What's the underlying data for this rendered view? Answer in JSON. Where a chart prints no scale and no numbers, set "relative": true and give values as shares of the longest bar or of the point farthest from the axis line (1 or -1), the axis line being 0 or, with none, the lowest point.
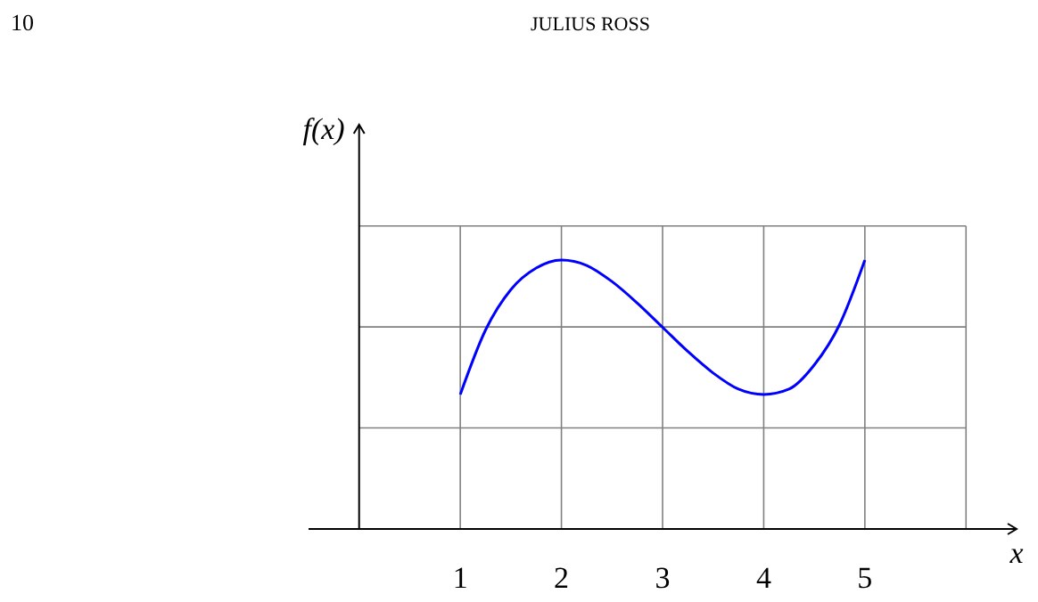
{
  "chart_data": {
    "type": "line",
    "relative": true,
    "xlabel": "x",
    "ylabel": "f(x)",
    "annotations": [
      "10",
      "JULIUS ROSS"
    ],
    "x": [
      1,
      1.25,
      1.5,
      1.75,
      2,
      2.25,
      2.5,
      2.75,
      3,
      3.25,
      3.5,
      3.75,
      4,
      4.25,
      4.5,
      4.75,
      5
    ],
    "xlim": [
      -0.5,
      6.5
    ],
    "xticks": [
      1,
      2,
      3,
      4,
      5,
      {
        "value": 6,
        "label": null
      }
    ],
    "grid": true,
    "series": [
      {
        "color": "#0000ff",
        "values": [
          0.5,
          0.74,
          0.89,
          0.97,
          1,
          0.98,
          0.92,
          0.84,
          0.75,
          0.66,
          0.58,
          0.52,
          0.5,
          0.52,
          0.61,
          0.76,
          1
        ]
      }
    ]
  }
}
